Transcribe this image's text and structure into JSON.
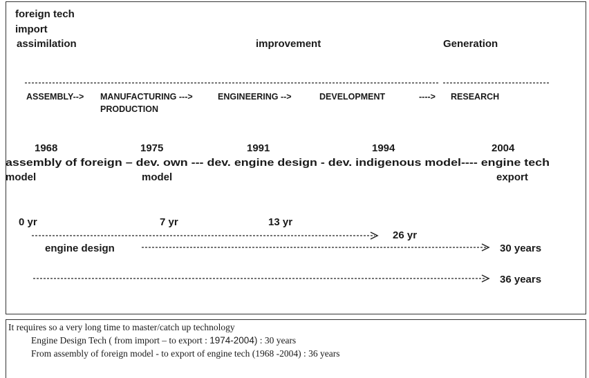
{
  "header": {
    "lines": [
      "foreign tech",
      "import",
      "assimilation"
    ],
    "phases": [
      "improvement",
      "Generation"
    ]
  },
  "stages": [
    "ASSEMBLY-->",
    "MANUFACTURING --->",
    "ENGINEERING -->",
    "DEVELOPMENT",
    "---->",
    "RESEARCH"
  ],
  "stage_second_line": "PRODUCTION",
  "milestones": {
    "years": [
      "1968",
      "1975",
      "1991",
      "1994",
      "2004"
    ],
    "line": "assembly of foreign – dev. own --- dev. engine design - dev. indigenous model---- engine tech",
    "second_line": [
      "model",
      "model",
      "export"
    ]
  },
  "timeline": {
    "marks": [
      "0 yr",
      "7 yr",
      "13 yr"
    ],
    "durations": [
      "26 yr",
      "30 years",
      "36 years"
    ],
    "engine_label": "engine design"
  },
  "notes": {
    "line1": "It requires  so a very long time to master/catch up  technology",
    "line2": [
      "Engine  Design Tech  ( from import – to  export :",
      "1974-2004)",
      ": 30 years"
    ],
    "line3": "From   assembly  of foreign model  -  to  export of  engine tech  (1968 -2004) : 36 years"
  }
}
